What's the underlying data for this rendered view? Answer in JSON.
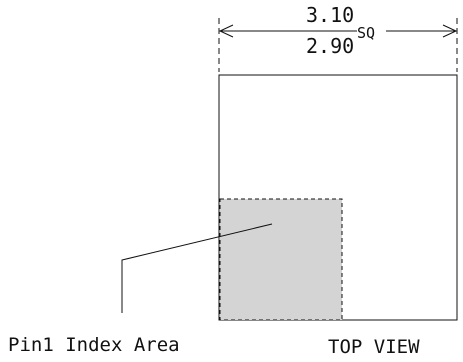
{
  "dimension": {
    "upper_value": "3.10",
    "lower_value": "2.90",
    "suffix": "SQ"
  },
  "labels": {
    "pin1_index_area": "Pin1 Index Area",
    "view_name": "TOP VIEW"
  },
  "colors": {
    "line": "#111111",
    "index_area_fill": "#d4d4d4",
    "background": "#ffffff"
  }
}
